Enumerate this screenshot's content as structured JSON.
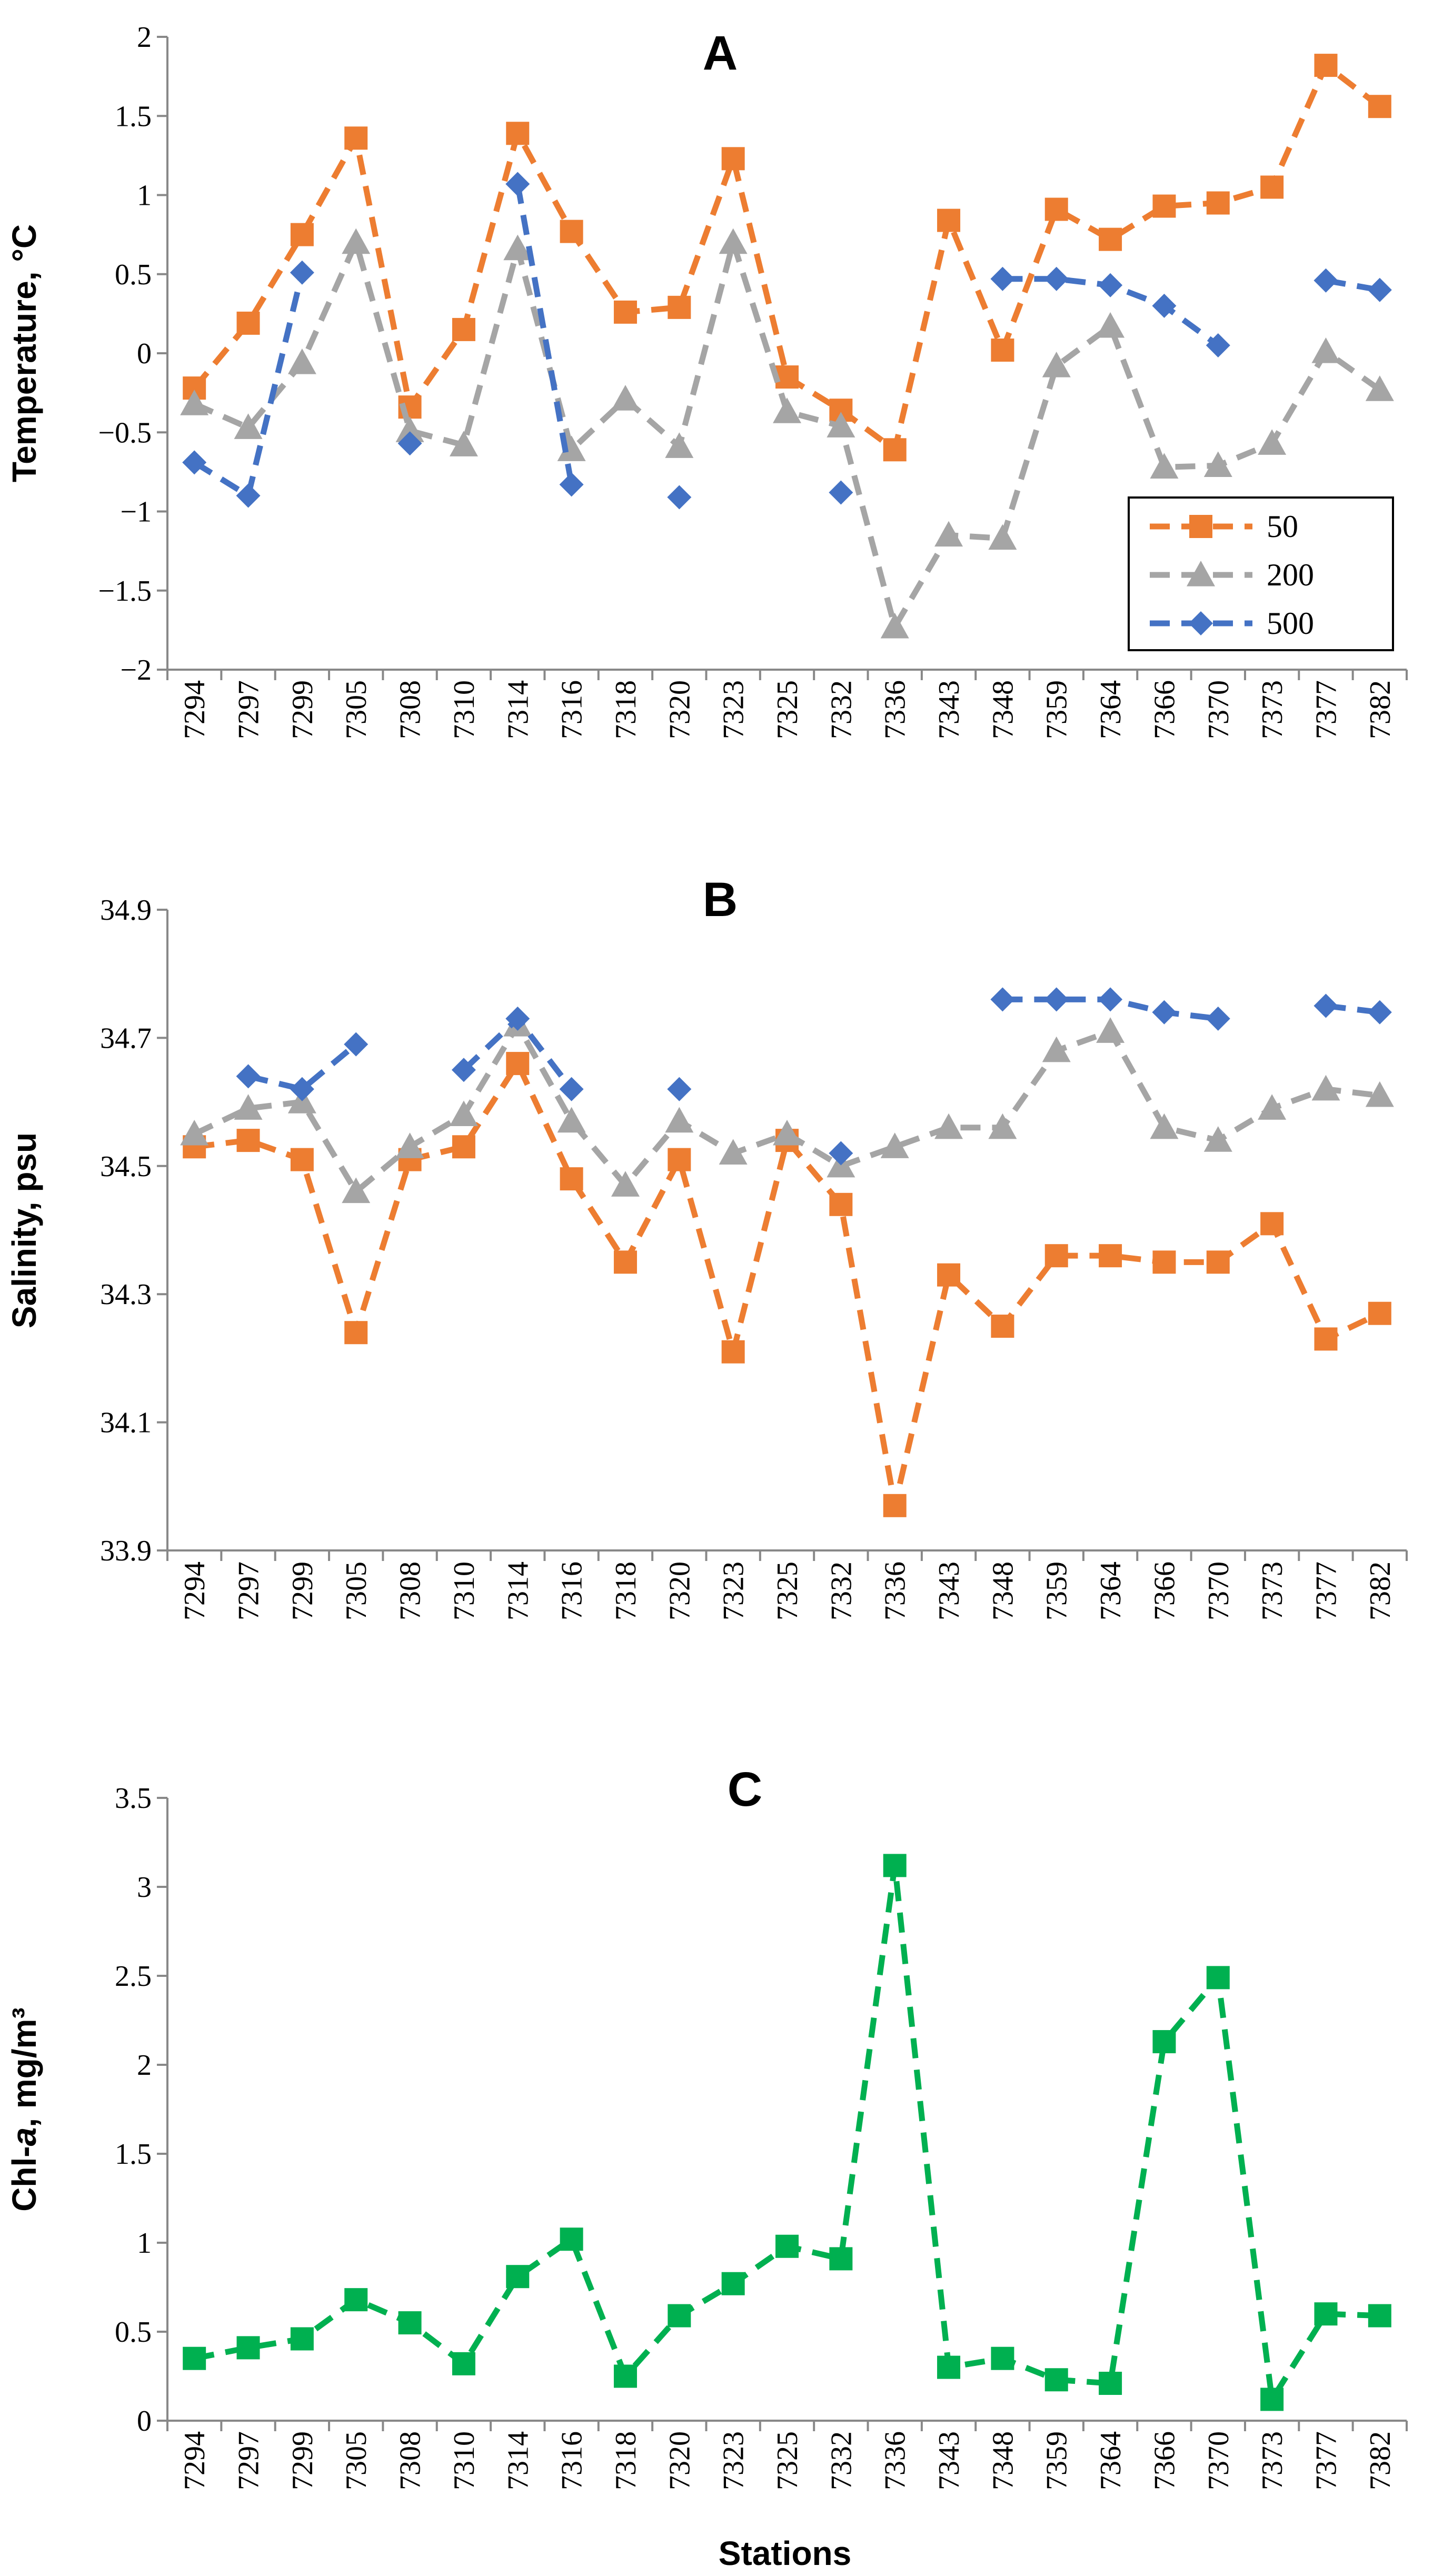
{
  "colors": {
    "depth_50": "#ED7D31",
    "depth_200": "#A5A5A5",
    "depth_500": "#4472C4",
    "chl": "#00B050",
    "axis": "#888888"
  },
  "x_axis_title": "Stations",
  "chart_data": [
    {
      "type": "line",
      "panel": "A",
      "title": "A",
      "ylabel": "Temperature, °C",
      "xlabel": "",
      "ylim": [
        -2,
        2
      ],
      "yticks": [
        2,
        1.5,
        1,
        0.5,
        0,
        -0.5,
        -1,
        -1.5,
        -2
      ],
      "ytick_labels": [
        "2",
        "1.5",
        "1",
        "0.5",
        "0",
        "−0.5",
        "−1",
        "−1.5",
        "−2"
      ],
      "categories": [
        "7294",
        "7297",
        "7299",
        "7305",
        "7308",
        "7310",
        "7314",
        "7316",
        "7318",
        "7320",
        "7323",
        "7325",
        "7332",
        "7336",
        "7343",
        "7348",
        "7359",
        "7364",
        "7366",
        "7370",
        "7373",
        "7377",
        "7382"
      ],
      "legend": {
        "placement": "bottom-right",
        "entries": [
          "50",
          "200",
          "500"
        ]
      },
      "series": [
        {
          "name": "50",
          "marker": "square",
          "color": "#ED7D31",
          "values": [
            -0.22,
            0.19,
            0.75,
            1.36,
            -0.34,
            0.15,
            1.39,
            0.77,
            0.26,
            0.29,
            1.23,
            -0.15,
            -0.36,
            -0.61,
            0.84,
            0.02,
            0.91,
            0.72,
            0.93,
            0.95,
            1.05,
            1.82,
            1.56
          ]
        },
        {
          "name": "200",
          "marker": "triangle",
          "color": "#A5A5A5",
          "values": [
            -0.32,
            -0.47,
            -0.06,
            0.7,
            -0.49,
            -0.58,
            0.66,
            -0.61,
            -0.29,
            -0.59,
            0.7,
            -0.37,
            -0.46,
            -1.73,
            -1.15,
            -1.17,
            -0.08,
            0.17,
            -0.72,
            -0.71,
            -0.57,
            0.01,
            -0.23
          ]
        },
        {
          "name": "500",
          "marker": "diamond",
          "color": "#4472C4",
          "values": [
            -0.69,
            -0.9,
            0.51,
            null,
            -0.57,
            null,
            1.07,
            -0.83,
            null,
            -0.91,
            null,
            null,
            -0.88,
            null,
            null,
            0.47,
            0.47,
            0.43,
            0.3,
            0.05,
            null,
            0.46,
            0.4
          ]
        }
      ]
    },
    {
      "type": "line",
      "panel": "B",
      "title": "B",
      "ylabel": "Salinity, psu",
      "xlabel": "",
      "ylim": [
        33.9,
        34.9
      ],
      "yticks": [
        34.9,
        34.7,
        34.5,
        34.3,
        34.1,
        33.9
      ],
      "ytick_labels": [
        "34.9",
        "34.7",
        "34.5",
        "34.3",
        "34.1",
        "33.9"
      ],
      "categories": [
        "7294",
        "7297",
        "7299",
        "7305",
        "7308",
        "7310",
        "7314",
        "7316",
        "7318",
        "7320",
        "7323",
        "7325",
        "7332",
        "7336",
        "7343",
        "7348",
        "7359",
        "7364",
        "7366",
        "7370",
        "7373",
        "7377",
        "7382"
      ],
      "series": [
        {
          "name": "50",
          "marker": "square",
          "color": "#ED7D31",
          "values": [
            34.53,
            34.54,
            34.51,
            34.24,
            34.51,
            34.53,
            34.66,
            34.48,
            34.35,
            34.51,
            34.21,
            34.54,
            34.44,
            33.97,
            34.33,
            34.25,
            34.36,
            34.36,
            34.35,
            34.35,
            34.41,
            34.23,
            34.27
          ]
        },
        {
          "name": "200",
          "marker": "triangle",
          "color": "#A5A5A5",
          "values": [
            34.55,
            34.59,
            34.6,
            34.46,
            34.53,
            34.58,
            34.72,
            34.57,
            34.47,
            34.57,
            34.52,
            34.55,
            34.5,
            34.53,
            34.56,
            34.56,
            34.68,
            34.71,
            34.56,
            34.54,
            34.59,
            34.62,
            34.61
          ]
        },
        {
          "name": "500",
          "marker": "diamond",
          "color": "#4472C4",
          "values": [
            null,
            34.64,
            34.62,
            34.69,
            null,
            34.65,
            34.73,
            34.62,
            null,
            34.62,
            null,
            null,
            34.52,
            null,
            null,
            34.76,
            34.76,
            34.76,
            34.74,
            34.73,
            null,
            34.75,
            34.74
          ]
        }
      ]
    },
    {
      "type": "line",
      "panel": "C",
      "title": "C",
      "ylabel": "Chl-a, mg/m³",
      "xlabel": "Stations",
      "ylim": [
        0,
        3.5
      ],
      "yticks": [
        3.5,
        3,
        2.5,
        2,
        1.5,
        1,
        0.5,
        0
      ],
      "ytick_labels": [
        "3.5",
        "3",
        "2.5",
        "2",
        "1.5",
        "1",
        "0.5",
        "0"
      ],
      "categories": [
        "7294",
        "7297",
        "7299",
        "7305",
        "7308",
        "7310",
        "7314",
        "7316",
        "7318",
        "7320",
        "7323",
        "7325",
        "7332",
        "7336",
        "7343",
        "7348",
        "7359",
        "7364",
        "7366",
        "7370",
        "7373",
        "7377",
        "7382"
      ],
      "series": [
        {
          "marker": "square",
          "color": "#00B050",
          "values": [
            0.35,
            0.41,
            0.46,
            0.68,
            0.55,
            0.32,
            0.81,
            1.02,
            0.25,
            0.59,
            0.77,
            0.98,
            0.91,
            3.12,
            0.3,
            0.35,
            0.23,
            0.21,
            2.13,
            2.49,
            0.12,
            0.6,
            0.59
          ]
        }
      ]
    }
  ]
}
